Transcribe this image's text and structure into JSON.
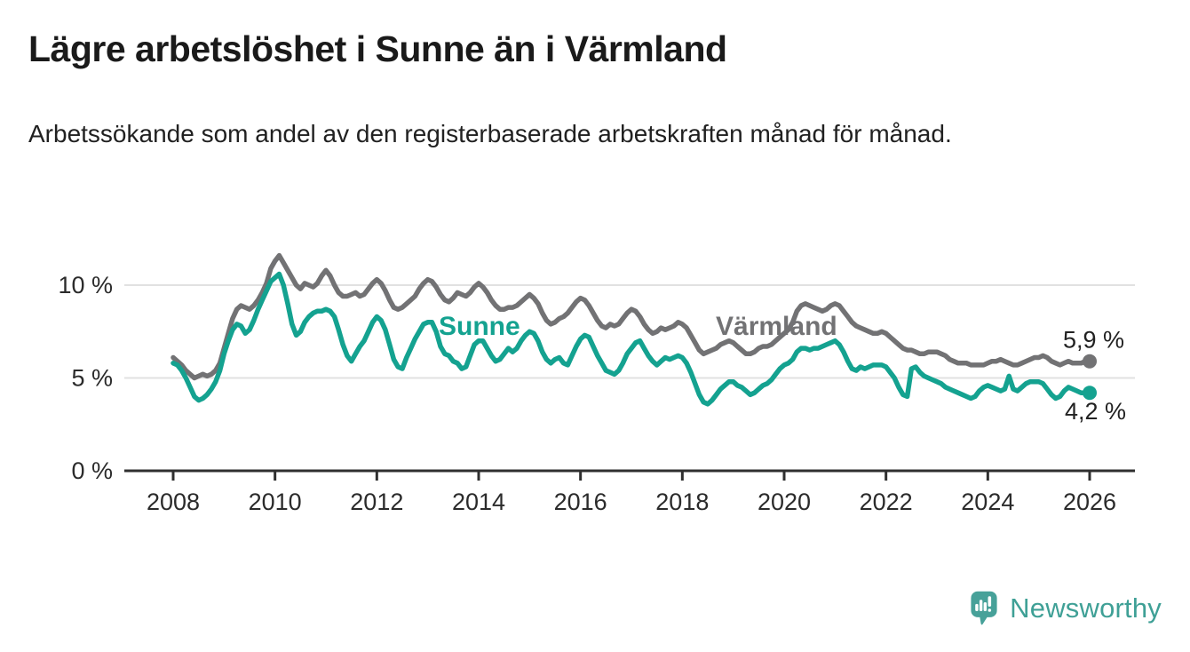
{
  "header": {
    "title": "Lägre arbetslöshet i Sunne än i Värmland",
    "subtitle": "Arbetssökande som andel av den registerbaserade arbetskraften månad för månad."
  },
  "chart_data": {
    "type": "line",
    "title": "Lägre arbetslöshet i Sunne än i Värmland",
    "subtitle": "Arbetssökande som andel av den registerbaserade arbetskraften månad för månad.",
    "x_unit": "month",
    "x_range": [
      "2008-01",
      "2026-01"
    ],
    "ylabel": "",
    "ylim": [
      0,
      12.5
    ],
    "grid": "horizontal",
    "legend_position": "inline-labels",
    "y_ticks": [
      {
        "value": 0,
        "label": "0 %"
      },
      {
        "value": 5,
        "label": "5 %"
      },
      {
        "value": 10,
        "label": "10 %"
      }
    ],
    "x_ticks": [
      {
        "year": 2008,
        "label": "2008"
      },
      {
        "year": 2010,
        "label": "2010"
      },
      {
        "year": 2012,
        "label": "2012"
      },
      {
        "year": 2014,
        "label": "2014"
      },
      {
        "year": 2016,
        "label": "2016"
      },
      {
        "year": 2018,
        "label": "2018"
      },
      {
        "year": 2020,
        "label": "2020"
      },
      {
        "year": 2022,
        "label": "2022"
      },
      {
        "year": 2024,
        "label": "2024"
      },
      {
        "year": 2026,
        "label": "2026"
      }
    ],
    "series": [
      {
        "id": "varmland",
        "name": "Värmland",
        "color": "#727274",
        "end_label": "5,9 %",
        "end_value": 5.9,
        "name_label_pos": [
          806,
          377
        ],
        "end_label_offset": [
          -30,
          -15
        ],
        "values": [
          6.1,
          5.9,
          5.7,
          5.4,
          5.2,
          5.0,
          5.1,
          5.2,
          5.1,
          5.2,
          5.4,
          5.8,
          6.6,
          7.4,
          8.2,
          8.7,
          8.9,
          8.8,
          8.7,
          8.9,
          9.2,
          9.6,
          10.1,
          10.9,
          11.3,
          11.6,
          11.2,
          10.8,
          10.4,
          10.0,
          9.8,
          10.1,
          10.0,
          9.9,
          10.1,
          10.5,
          10.8,
          10.5,
          10.0,
          9.6,
          9.4,
          9.4,
          9.5,
          9.6,
          9.4,
          9.5,
          9.8,
          10.1,
          10.3,
          10.1,
          9.7,
          9.2,
          8.8,
          8.7,
          8.8,
          9.0,
          9.2,
          9.4,
          9.8,
          10.1,
          10.3,
          10.2,
          9.9,
          9.5,
          9.2,
          9.1,
          9.3,
          9.6,
          9.5,
          9.4,
          9.6,
          9.9,
          10.1,
          9.9,
          9.6,
          9.2,
          8.9,
          8.7,
          8.7,
          8.8,
          8.8,
          8.9,
          9.1,
          9.3,
          9.5,
          9.3,
          9.0,
          8.5,
          8.1,
          7.9,
          8.0,
          8.2,
          8.3,
          8.5,
          8.8,
          9.1,
          9.3,
          9.2,
          8.9,
          8.5,
          8.1,
          7.8,
          7.7,
          7.9,
          7.8,
          7.9,
          8.2,
          8.5,
          8.7,
          8.6,
          8.3,
          7.9,
          7.6,
          7.4,
          7.5,
          7.7,
          7.6,
          7.7,
          7.8,
          8.0,
          7.9,
          7.7,
          7.3,
          6.9,
          6.5,
          6.3,
          6.4,
          6.5,
          6.6,
          6.8,
          6.9,
          7.0,
          6.9,
          6.7,
          6.5,
          6.3,
          6.3,
          6.4,
          6.6,
          6.7,
          6.7,
          6.8,
          7.0,
          7.2,
          7.4,
          7.6,
          8.0,
          8.6,
          8.9,
          9.0,
          8.9,
          8.8,
          8.7,
          8.6,
          8.7,
          8.9,
          9.0,
          8.9,
          8.6,
          8.3,
          8.0,
          7.8,
          7.7,
          7.6,
          7.5,
          7.4,
          7.4,
          7.5,
          7.4,
          7.2,
          7.0,
          6.8,
          6.6,
          6.5,
          6.5,
          6.4,
          6.3,
          6.3,
          6.4,
          6.4,
          6.4,
          6.3,
          6.2,
          6.0,
          5.9,
          5.8,
          5.8,
          5.8,
          5.7,
          5.7,
          5.7,
          5.7,
          5.8,
          5.9,
          5.9,
          6.0,
          5.9,
          5.8,
          5.7,
          5.7,
          5.8,
          5.9,
          6.0,
          6.1,
          6.1,
          6.2,
          6.1,
          5.9,
          5.8,
          5.7,
          5.8,
          5.9,
          5.8,
          5.8,
          5.8,
          5.9,
          5.9
        ]
      },
      {
        "id": "sunne",
        "name": "Sunne",
        "color": "#14a290",
        "end_label": "4,2 %",
        "end_value": 4.2,
        "name_label_pos": [
          494,
          377
        ],
        "end_label_offset": [
          -28,
          30
        ],
        "values": [
          5.8,
          5.7,
          5.4,
          5.0,
          4.5,
          4.0,
          3.8,
          3.9,
          4.1,
          4.4,
          4.8,
          5.4,
          6.3,
          7.0,
          7.6,
          7.9,
          7.8,
          7.4,
          7.6,
          8.1,
          8.7,
          9.2,
          9.7,
          10.2,
          10.4,
          10.6,
          10.0,
          9.0,
          7.9,
          7.3,
          7.5,
          8.0,
          8.3,
          8.5,
          8.6,
          8.6,
          8.7,
          8.6,
          8.3,
          7.6,
          6.8,
          6.2,
          5.9,
          6.3,
          6.7,
          7.0,
          7.5,
          8.0,
          8.3,
          8.1,
          7.6,
          6.8,
          6.0,
          5.6,
          5.5,
          6.1,
          6.6,
          7.1,
          7.5,
          7.9,
          8.0,
          8.0,
          7.5,
          6.7,
          6.3,
          6.2,
          5.9,
          5.8,
          5.5,
          5.6,
          6.2,
          6.8,
          7.0,
          7.0,
          6.6,
          6.2,
          5.9,
          6.0,
          6.3,
          6.6,
          6.4,
          6.6,
          7.0,
          7.3,
          7.5,
          7.4,
          7.0,
          6.4,
          6.0,
          5.8,
          6.0,
          6.1,
          5.8,
          5.7,
          6.2,
          6.7,
          7.1,
          7.3,
          7.2,
          6.7,
          6.2,
          5.8,
          5.4,
          5.3,
          5.2,
          5.4,
          5.8,
          6.3,
          6.6,
          6.9,
          7.0,
          6.6,
          6.2,
          5.9,
          5.7,
          5.9,
          6.1,
          6.0,
          6.1,
          6.2,
          6.1,
          5.8,
          5.3,
          4.7,
          4.1,
          3.7,
          3.6,
          3.8,
          4.1,
          4.4,
          4.6,
          4.8,
          4.8,
          4.6,
          4.5,
          4.3,
          4.1,
          4.2,
          4.4,
          4.6,
          4.7,
          4.9,
          5.2,
          5.5,
          5.7,
          5.8,
          6.0,
          6.4,
          6.6,
          6.6,
          6.5,
          6.6,
          6.6,
          6.7,
          6.8,
          6.9,
          7.0,
          6.8,
          6.4,
          5.9,
          5.5,
          5.4,
          5.6,
          5.5,
          5.6,
          5.7,
          5.7,
          5.7,
          5.6,
          5.3,
          5.0,
          4.5,
          4.1,
          4.0,
          5.5,
          5.6,
          5.3,
          5.1,
          5.0,
          4.9,
          4.8,
          4.7,
          4.5,
          4.4,
          4.3,
          4.2,
          4.1,
          4.0,
          3.9,
          4.0,
          4.3,
          4.5,
          4.6,
          4.5,
          4.4,
          4.3,
          4.4,
          5.1,
          4.4,
          4.3,
          4.5,
          4.7,
          4.8,
          4.8,
          4.8,
          4.7,
          4.4,
          4.1,
          3.9,
          4.0,
          4.3,
          4.5,
          4.4,
          4.3,
          4.2,
          4.2,
          4.2
        ]
      }
    ]
  },
  "footer": {
    "logo_text": "Newsworthy"
  },
  "colors": {
    "sunne_teal": "#14a290",
    "varmland_gray": "#727274",
    "logo_teal": "#3fa096",
    "gridline": "#e1e1e1",
    "axis": "#2f2f2f",
    "text_dark": "#1a1a1a",
    "tick_text": "#2b2b2b"
  }
}
